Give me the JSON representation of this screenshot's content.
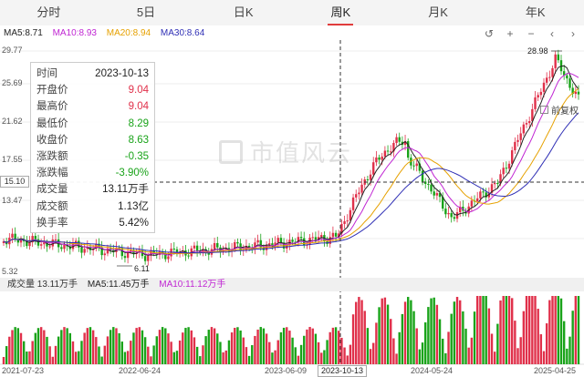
{
  "tabs": [
    {
      "label": "分时",
      "active": false
    },
    {
      "label": "5日",
      "active": false
    },
    {
      "label": "日K",
      "active": false
    },
    {
      "label": "周K",
      "active": true
    },
    {
      "label": "月K",
      "active": false
    },
    {
      "label": "年K",
      "active": false
    }
  ],
  "ma_legend": {
    "ma5": "MA5:8.71",
    "ma10": "MA10:8.93",
    "ma20": "MA20:8.94",
    "ma30": "MA30:8.64"
  },
  "toolbar": {
    "reset_icon": "reset-icon",
    "zoom_in_icon": "plus-icon",
    "zoom_out_icon": "minus-icon",
    "left_icon": "chevron-left-icon",
    "right_icon": "chevron-right-icon"
  },
  "fuquan_label": "前复权",
  "watermark": "市值风云",
  "y_axis": [
    "29.77",
    "25.69",
    "21.62",
    "17.55",
    "13.47",
    "5.32"
  ],
  "price_cursor": "15.10",
  "x_axis": [
    "2021-07-23",
    "2022-06-24",
    "2023-06-09",
    "2024-05-24",
    "2025-04-25"
  ],
  "x_cursor": "2023-10-13",
  "high_annotation": "28.98",
  "low_annotation": "6.11",
  "info_panel": {
    "rows": [
      {
        "key": "时间",
        "value": "2023-10-13",
        "tone": "nt"
      },
      {
        "key": "开盘价",
        "value": "9.04",
        "tone": "up"
      },
      {
        "key": "最高价",
        "value": "9.04",
        "tone": "up"
      },
      {
        "key": "最低价",
        "value": "8.29",
        "tone": "dn"
      },
      {
        "key": "收盘价",
        "value": "8.63",
        "tone": "dn"
      },
      {
        "key": "涨跌额",
        "value": "-0.35",
        "tone": "dn"
      },
      {
        "key": "涨跌幅",
        "value": "-3.90%",
        "tone": "dn"
      },
      {
        "key": "成交量",
        "value": "13.11万手",
        "tone": "nt"
      },
      {
        "key": "成交额",
        "value": "1.13亿",
        "tone": "nt"
      },
      {
        "key": "换手率",
        "value": "5.42%",
        "tone": "nt"
      }
    ]
  },
  "vol_legend": {
    "vol": "成交量  13.11万手",
    "ma5": "MA5:11.45万手",
    "ma10": "MA10:11.12万手"
  },
  "colors": {
    "up": "#e0304a",
    "down": "#19a319",
    "ma5": "#222222",
    "ma10": "#c026d3",
    "ma20": "#e6a100",
    "ma30": "#2f2fb5"
  }
}
